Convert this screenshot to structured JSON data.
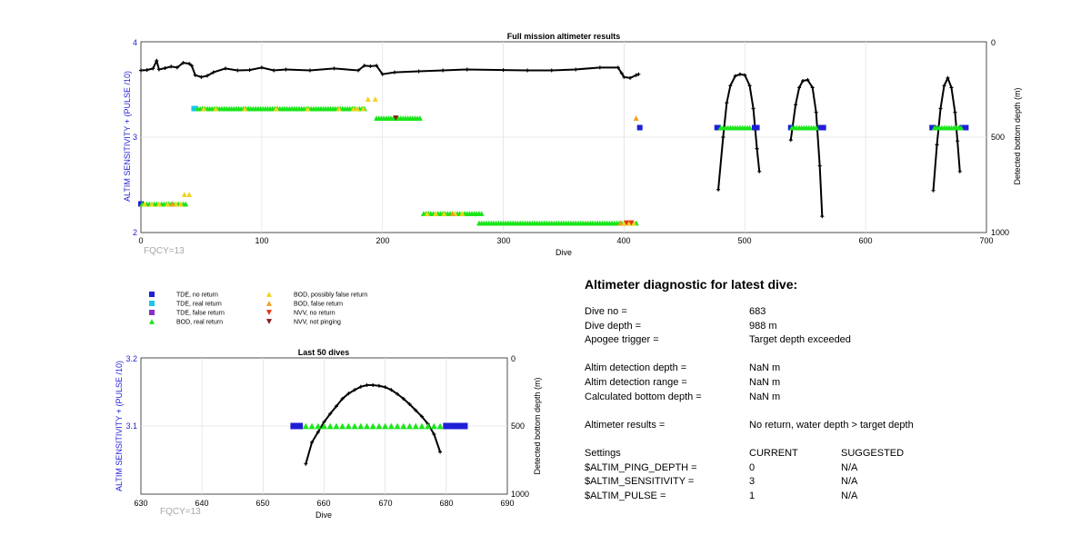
{
  "charts": {
    "full": {
      "title": "Full mission altimeter results",
      "xlabel": "Dive",
      "ylabel_left": "ALTIM SENSITIVITY + (PULSE /10)",
      "ylabel_right": "Detected bottom depth (m)",
      "xticks": [
        "0",
        "100",
        "200",
        "300",
        "400",
        "500",
        "600",
        "700"
      ],
      "yticks_left": [
        "2",
        "3",
        "4"
      ],
      "yticks_right": [
        "0",
        "500",
        "1000"
      ],
      "footnote": "FQCY=13"
    },
    "recent": {
      "title": "Last 50 dives",
      "xlabel": "Dive",
      "ylabel_left": "ALTIM SENSITIVITY + (PULSE /10)",
      "ylabel_right": "Detected bottom depth (m)",
      "xticks": [
        "630",
        "640",
        "650",
        "660",
        "670",
        "680",
        "690"
      ],
      "yticks_left": [
        "3.1",
        "3.2"
      ],
      "yticks_right": [
        "0",
        "500",
        "1000"
      ],
      "footnote": "FQCY=13"
    }
  },
  "legend": [
    {
      "label": "TDE, no return",
      "marker": "square",
      "color": "#1f1fd6"
    },
    {
      "label": "TDE, real return",
      "marker": "square",
      "color": "#19c8e6"
    },
    {
      "label": "TDE, false return",
      "marker": "square",
      "color": "#8b2fc9"
    },
    {
      "label": "BOD, real return",
      "marker": "triangle-up",
      "color": "#19e619"
    },
    {
      "label": "BOD, possibly false return",
      "marker": "triangle-up",
      "color": "#f2d21e"
    },
    {
      "label": "BOD, false return",
      "marker": "triangle-up",
      "color": "#f2a01e"
    },
    {
      "label": "NVV, no return",
      "marker": "triangle-down",
      "color": "#e63319"
    },
    {
      "label": "NVV, not pinging",
      "marker": "triangle-down",
      "color": "#8b1a1a"
    }
  ],
  "chart_data": [
    {
      "type": "scatter",
      "title": "Full mission altimeter results",
      "xlabel": "Dive",
      "ylabel": "ALTIM SENSITIVITY + (PULSE /10)",
      "y2label": "Detected bottom depth (m)",
      "xlim": [
        0,
        700
      ],
      "ylim": [
        2,
        4
      ],
      "y2lim": [
        1000,
        0
      ],
      "grid": true,
      "series": [
        {
          "name": "TDE, no return",
          "marker": "square",
          "color": "#1f1fd6",
          "points": [
            [
              0,
              2.3
            ],
            [
              413,
              3.1
            ],
            [
              477,
              3.1
            ],
            [
              478,
              3.1
            ],
            [
              508,
              3.1
            ],
            [
              510,
              3.1
            ],
            [
              538,
              3.1
            ],
            [
              563,
              3.1
            ],
            [
              565,
              3.1
            ],
            [
              655,
              3.1
            ],
            [
              656,
              3.1
            ],
            [
              680,
              3.1
            ],
            [
              681,
              3.1
            ],
            [
              682,
              3.1
            ],
            [
              683,
              3.1
            ]
          ]
        },
        {
          "name": "TDE, real return",
          "marker": "square",
          "color": "#19c8e6",
          "points": [
            [
              44,
              3.3
            ],
            [
              45,
              3.3
            ]
          ]
        },
        {
          "name": "TDE, false return",
          "marker": "square",
          "color": "#8b2fc9",
          "points": []
        },
        {
          "name": "BOD, real return",
          "marker": "triangle-up",
          "color": "#19e619",
          "segments": [
            [
              1,
              38,
              2.3
            ],
            [
              47,
              185,
              3.3
            ],
            [
              195,
              232,
              3.2
            ],
            [
              234,
              282,
              2.2
            ],
            [
              280,
              411,
              2.1
            ],
            [
              480,
              505,
              3.1
            ],
            [
              539,
              560,
              3.1
            ],
            [
              657,
              679,
              3.1
            ]
          ]
        },
        {
          "name": "BOD, possibly false return",
          "marker": "triangle-up",
          "color": "#f2d21e",
          "points": [
            [
              3,
              2.3
            ],
            [
              9,
              2.3
            ],
            [
              15,
              2.3
            ],
            [
              22,
              2.3
            ],
            [
              29,
              2.3
            ],
            [
              33,
              2.3
            ],
            [
              36,
              2.4
            ],
            [
              40,
              2.4
            ],
            [
              52,
              3.3
            ],
            [
              62,
              3.3
            ],
            [
              86,
              3.3
            ],
            [
              112,
              3.3
            ],
            [
              138,
              3.3
            ],
            [
              164,
              3.3
            ],
            [
              176,
              3.3
            ],
            [
              179,
              3.3
            ],
            [
              184,
              3.3
            ],
            [
              188,
              3.4
            ],
            [
              194,
              3.4
            ],
            [
              237,
              2.2
            ],
            [
              244,
              2.2
            ],
            [
              251,
              2.2
            ],
            [
              260,
              2.2
            ],
            [
              266,
              2.2
            ],
            [
              400,
              2.1
            ],
            [
              404,
              2.1
            ],
            [
              408,
              2.1
            ]
          ]
        },
        {
          "name": "BOD, false return",
          "marker": "triangle-up",
          "color": "#f2a01e",
          "points": [
            [
              26,
              2.3
            ],
            [
              258,
              2.2
            ],
            [
              397,
              2.1
            ],
            [
              410,
              3.2
            ]
          ]
        },
        {
          "name": "NVV, no return",
          "marker": "triangle-down",
          "color": "#e63319",
          "points": [
            [
              402,
              2.1
            ],
            [
              406,
              2.1
            ]
          ]
        },
        {
          "name": "NVV, not pinging",
          "marker": "triangle-down",
          "color": "#8b1a1a",
          "points": [
            [
              211,
              3.2
            ]
          ]
        }
      ],
      "depth_dives": [
        {
          "x": [
            0,
            5,
            10,
            13,
            15,
            20,
            25,
            30,
            35,
            40,
            42,
            45,
            50,
            55,
            60,
            70,
            80,
            90,
            100,
            110,
            120,
            140,
            160,
            180,
            185,
            190,
            195,
            200,
            210,
            230,
            250,
            270,
            300,
            320,
            340,
            360,
            380,
            395,
            398,
            400,
            405,
            410,
            412
          ],
          "y": [
            150,
            148,
            140,
            100,
            145,
            138,
            130,
            135,
            110,
            115,
            125,
            175,
            185,
            178,
            160,
            140,
            150,
            148,
            135,
            150,
            145,
            150,
            140,
            150,
            125,
            128,
            125,
            170,
            160,
            155,
            150,
            145,
            148,
            150,
            150,
            145,
            135,
            135,
            165,
            185,
            190,
            175,
            170
          ]
        },
        {
          "x": [
            478,
            482,
            485,
            488,
            492,
            496,
            500,
            504,
            507,
            510,
            512
          ],
          "y": [
            775,
            500,
            320,
            230,
            180,
            170,
            175,
            230,
            350,
            560,
            680
          ]
        },
        {
          "x": [
            538,
            542,
            545,
            548,
            552,
            556,
            559,
            562,
            564
          ],
          "y": [
            515,
            330,
            240,
            205,
            200,
            240,
            370,
            650,
            915
          ]
        },
        {
          "x": [
            656,
            659,
            662,
            665,
            668,
            671,
            674,
            676,
            678
          ],
          "y": [
            780,
            540,
            350,
            230,
            190,
            240,
            370,
            520,
            680
          ]
        }
      ]
    },
    {
      "type": "scatter",
      "title": "Last 50 dives",
      "xlabel": "Dive",
      "ylabel": "ALTIM SENSITIVITY + (PULSE /10)",
      "y2label": "Detected bottom depth (m)",
      "xlim": [
        630,
        690
      ],
      "ylim": [
        3.0,
        3.2
      ],
      "y2lim": [
        1000,
        0
      ],
      "grid": true,
      "series": [
        {
          "name": "TDE, no return",
          "marker": "square",
          "color": "#1f1fd6",
          "points": [
            [
              655,
              3.1
            ],
            [
              656,
              3.1
            ],
            [
              680,
              3.1
            ],
            [
              681,
              3.1
            ],
            [
              682,
              3.1
            ],
            [
              683,
              3.1
            ]
          ]
        },
        {
          "name": "BOD, real return",
          "marker": "triangle-up",
          "color": "#19e619",
          "points": [
            [
              657,
              3.1
            ],
            [
              658,
              3.1
            ],
            [
              659,
              3.1
            ],
            [
              660,
              3.1
            ],
            [
              661,
              3.1
            ],
            [
              662,
              3.1
            ],
            [
              663,
              3.1
            ],
            [
              664,
              3.1
            ],
            [
              665,
              3.1
            ],
            [
              666,
              3.1
            ],
            [
              667,
              3.1
            ],
            [
              668,
              3.1
            ],
            [
              669,
              3.1
            ],
            [
              670,
              3.1
            ],
            [
              671,
              3.1
            ],
            [
              672,
              3.1
            ],
            [
              673,
              3.1
            ],
            [
              674,
              3.1
            ],
            [
              675,
              3.1
            ],
            [
              676,
              3.1
            ],
            [
              677,
              3.1
            ],
            [
              678,
              3.1
            ],
            [
              679,
              3.1
            ]
          ]
        }
      ],
      "depth_dive": {
        "x": [
          657,
          658,
          659,
          660,
          661,
          662,
          663,
          664,
          665,
          666,
          667,
          668,
          669,
          670,
          671,
          672,
          673,
          674,
          675,
          676,
          677,
          678,
          679
        ],
        "y": [
          778,
          620,
          545,
          470,
          410,
          355,
          300,
          262,
          235,
          212,
          200,
          200,
          205,
          215,
          235,
          265,
          300,
          340,
          385,
          430,
          485,
          560,
          690
        ]
      }
    }
  ],
  "diagnostic": {
    "title": "Altimeter diagnostic for latest dive:",
    "dive_no_label": "Dive no =",
    "dive_no": "683",
    "dive_depth_label": "Dive depth =",
    "dive_depth": "988 m",
    "apogee_label": "Apogee trigger =",
    "apogee": "Target depth exceeded",
    "detect_depth_label": "Altim detection depth =",
    "detect_depth": "NaN m",
    "detect_range_label": "Altim detection range =",
    "detect_range": "NaN m",
    "calc_bottom_label": "Calculated bottom depth =",
    "calc_bottom": "NaN m",
    "results_label": "Altimeter results =",
    "results": "No return, water depth > target depth",
    "settings_label": "Settings",
    "current_label": "CURRENT",
    "suggested_label": "SUGGESTED",
    "rows": [
      {
        "name": "$ALTIM_PING_DEPTH =",
        "current": "0",
        "suggested": "N/A"
      },
      {
        "name": "$ALTIM_SENSITIVITY =",
        "current": "3",
        "suggested": "N/A"
      },
      {
        "name": "$ALTIM_PULSE =",
        "current": "1",
        "suggested": "N/A"
      }
    ]
  }
}
